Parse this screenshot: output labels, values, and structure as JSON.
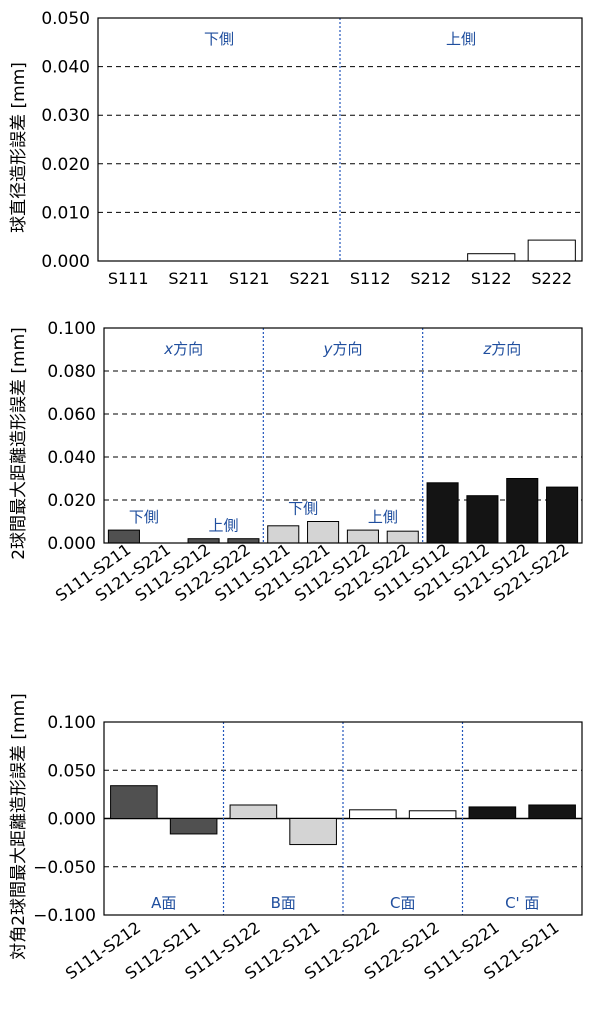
{
  "chart_data": [
    {
      "type": "bar",
      "ylabel": "球直径造形誤差 [mm]",
      "ylim": [
        0,
        0.05
      ],
      "yticks": [
        "0.000",
        "0.010",
        "0.020",
        "0.030",
        "0.040",
        "0.050"
      ],
      "grid": true,
      "categories": [
        "S111",
        "S211",
        "S121",
        "S221",
        "S112",
        "S212",
        "S122",
        "S222"
      ],
      "values": [
        0,
        0,
        0,
        0,
        0,
        0,
        0.0015,
        0.0043
      ],
      "colors": [
        "#ffffff",
        "#ffffff",
        "#ffffff",
        "#ffffff",
        "#ffffff",
        "#ffffff",
        "#ffffff",
        "#ffffff"
      ],
      "groups": [
        {
          "label": "下側",
          "start": 0,
          "end": 4
        },
        {
          "label": "上側",
          "start": 4,
          "end": 8
        }
      ]
    },
    {
      "type": "bar",
      "ylabel": "2球間最大距離造形誤差 [mm]",
      "ylim": [
        0,
        0.1
      ],
      "yticks": [
        "0.000",
        "0.020",
        "0.040",
        "0.060",
        "0.080",
        "0.100"
      ],
      "grid": true,
      "categories": [
        "S111-S211",
        "S121-S221",
        "S112-S212",
        "S122-S222",
        "S111-S121",
        "S211-S221",
        "S112-S122",
        "S212-S222",
        "S111-S112",
        "S211-S212",
        "S121-S122",
        "S221-S222"
      ],
      "values": [
        0.006,
        0.0,
        0.002,
        0.002,
        0.008,
        0.01,
        0.006,
        0.0055,
        0.028,
        0.022,
        0.03,
        0.026
      ],
      "colors": [
        "#505050",
        "#505050",
        "#505050",
        "#505050",
        "#d4d4d4",
        "#d4d4d4",
        "#d4d4d4",
        "#d4d4d4",
        "#141414",
        "#141414",
        "#141414",
        "#141414"
      ],
      "groups": [
        {
          "label_italic": "x",
          "label": "方向",
          "start": 0,
          "end": 4
        },
        {
          "label_italic": "y",
          "label": "方向",
          "start": 4,
          "end": 8
        },
        {
          "label_italic": "z",
          "label": "方向",
          "start": 8,
          "end": 12
        }
      ],
      "subgroups": [
        {
          "label": "下側",
          "start": 0,
          "end": 2
        },
        {
          "label": "上側",
          "start": 2,
          "end": 4
        },
        {
          "label": "下側",
          "start": 4,
          "end": 6
        },
        {
          "label": "上側",
          "start": 6,
          "end": 8
        }
      ]
    },
    {
      "type": "bar",
      "ylabel": "対角2球間最大距離造形誤差 [mm]",
      "ylim": [
        -0.1,
        0.1
      ],
      "yticks": [
        "−0.100",
        "−0.050",
        "0.000",
        "0.050",
        "0.100"
      ],
      "grid": true,
      "categories": [
        "S111-S212",
        "S112-S211",
        "S111-S122",
        "S112-S121",
        "S112-S222",
        "S122-S212",
        "S111-S221",
        "S121-S211"
      ],
      "values": [
        0.034,
        -0.016,
        0.014,
        -0.027,
        0.009,
        0.008,
        0.012,
        0.014
      ],
      "colors": [
        "#505050",
        "#505050",
        "#d4d4d4",
        "#d4d4d4",
        "#ffffff",
        "#ffffff",
        "#141414",
        "#141414"
      ],
      "groups": [
        {
          "label": "A面",
          "start": 0,
          "end": 2
        },
        {
          "label": "B面",
          "start": 2,
          "end": 4
        },
        {
          "label": "C面",
          "start": 4,
          "end": 6
        },
        {
          "label": "C' 面",
          "start": 6,
          "end": 8
        }
      ]
    }
  ]
}
